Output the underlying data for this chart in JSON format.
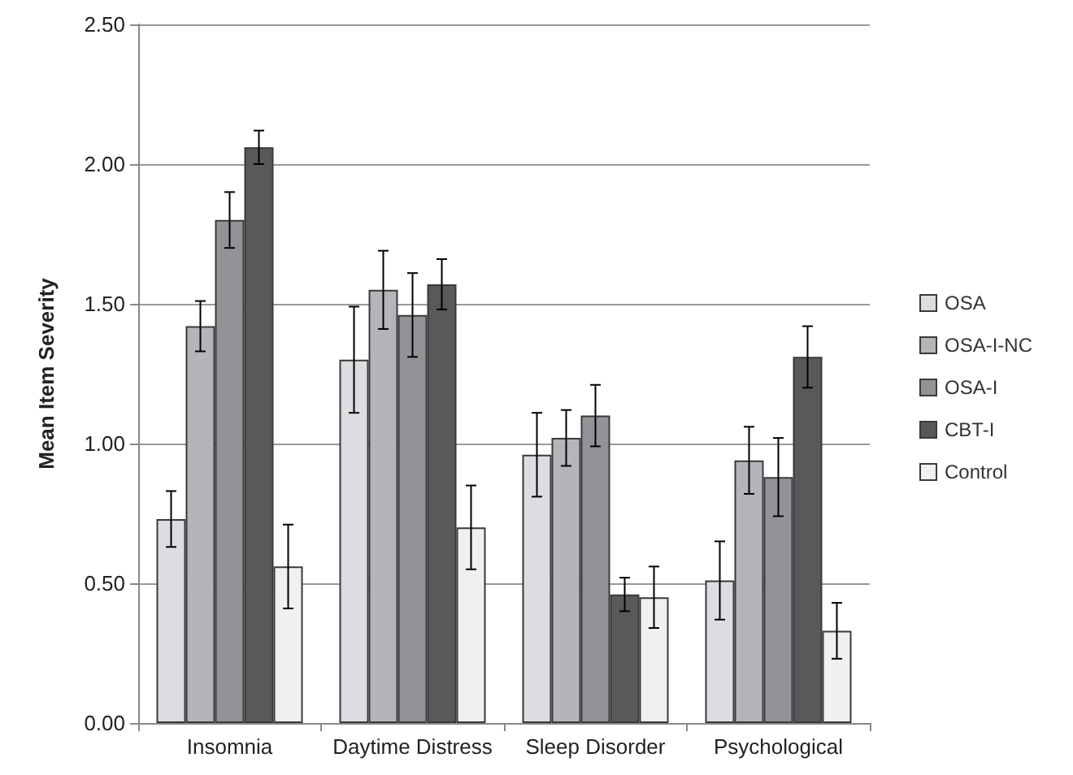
{
  "chart_data": {
    "type": "bar",
    "ylabel": "Mean Item Severity",
    "categories": [
      "Insomnia",
      "Daytime Distress",
      "Sleep Disorder",
      "Psychological"
    ],
    "series": [
      {
        "name": "OSA",
        "color": "#dcdde0",
        "values": [
          0.73,
          1.3,
          0.96,
          0.51
        ],
        "errors": [
          0.1,
          0.19,
          0.15,
          0.14
        ]
      },
      {
        "name": "OSA-I-NC",
        "color": "#b4b5b8",
        "values": [
          1.42,
          1.55,
          1.02,
          0.94
        ],
        "errors": [
          0.09,
          0.14,
          0.1,
          0.12
        ]
      },
      {
        "name": "OSA-I",
        "color": "#929396",
        "values": [
          1.8,
          1.46,
          1.1,
          0.88
        ],
        "errors": [
          0.1,
          0.15,
          0.11,
          0.14
        ]
      },
      {
        "name": "CBT-I",
        "color": "#58595b",
        "values": [
          2.06,
          1.57,
          0.46,
          1.31
        ],
        "errors": [
          0.06,
          0.09,
          0.06,
          0.11
        ]
      },
      {
        "name": "Control",
        "color": "#f0f0f0",
        "values": [
          0.56,
          0.7,
          0.45,
          0.33
        ],
        "errors": [
          0.15,
          0.15,
          0.11,
          0.1
        ]
      }
    ],
    "ylim": [
      0,
      2.5
    ],
    "yticks": [
      {
        "value": 0,
        "label": "0.00"
      },
      {
        "value": 0.5,
        "label": "0.50"
      },
      {
        "value": 1,
        "label": "1.00"
      },
      {
        "value": 1.5,
        "label": "1.50"
      },
      {
        "value": 2,
        "label": "2.00"
      },
      {
        "value": 2.5,
        "label": "2.50"
      }
    ],
    "grid": "y",
    "legend": "right"
  }
}
